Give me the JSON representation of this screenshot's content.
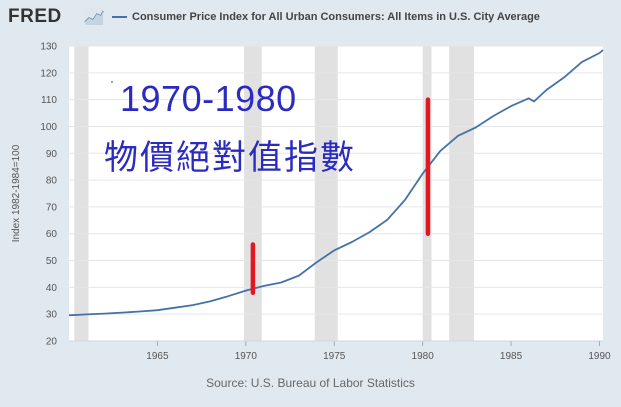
{
  "header": {
    "logo_text": "FRED",
    "logo_icon": "trend-line-icon",
    "series_title": "Consumer Price Index for All Urban Consumers: All Items in U.S. City Average"
  },
  "annotation": {
    "title": "1970-1980",
    "subtitle": "物價絕對值指數",
    "marker_color": "#e3171f"
  },
  "source": "Source: U.S. Bureau of Labor Statistics",
  "colors": {
    "line": "#4572a7",
    "recession": "#e1e1e1",
    "plot_bg": "#ffffff",
    "frame_bg": "#e1e9f0",
    "overlay_text": "#2b2bbf"
  },
  "chart_data": {
    "type": "line",
    "title": "",
    "ylabel": "Index 1982-1984=100",
    "xlabel": "",
    "xlim": [
      1960,
      1990.2
    ],
    "ylim": [
      20,
      130
    ],
    "x_ticks": [
      1965,
      1970,
      1975,
      1980,
      1985,
      1990
    ],
    "y_ticks": [
      20,
      30,
      40,
      50,
      60,
      70,
      80,
      90,
      100,
      110,
      120,
      130
    ],
    "grid": "horizontal",
    "recessions": [
      [
        1960.3,
        1961.1
      ],
      [
        1969.9,
        1970.9
      ],
      [
        1973.9,
        1975.2
      ],
      [
        1980.0,
        1980.5
      ],
      [
        1981.5,
        1982.9
      ]
    ],
    "markers": [
      {
        "x": 1970.4,
        "y_from": 38,
        "y_to": 56
      },
      {
        "x": 1980.3,
        "y_from": 60,
        "y_to": 110
      }
    ],
    "series": [
      {
        "name": "Consumer Price Index for All Urban Consumers: All Items in U.S. City Average",
        "x": [
          1960,
          1961,
          1962,
          1963,
          1964,
          1965,
          1966,
          1967,
          1968,
          1969,
          1970,
          1971,
          1972,
          1973,
          1974,
          1975,
          1976,
          1977,
          1978,
          1979,
          1980,
          1981,
          1982,
          1983,
          1984,
          1985,
          1986,
          1986.3,
          1987,
          1988,
          1989,
          1990,
          1990.2
        ],
        "y": [
          29.6,
          29.9,
          30.2,
          30.6,
          31.0,
          31.5,
          32.4,
          33.4,
          34.8,
          36.7,
          38.8,
          40.5,
          41.8,
          44.4,
          49.3,
          53.8,
          56.9,
          60.6,
          65.2,
          72.6,
          82.4,
          90.9,
          96.5,
          99.6,
          103.9,
          107.6,
          110.5,
          109.3,
          113.6,
          118.3,
          124.0,
          127.4,
          128.5
        ]
      }
    ]
  }
}
